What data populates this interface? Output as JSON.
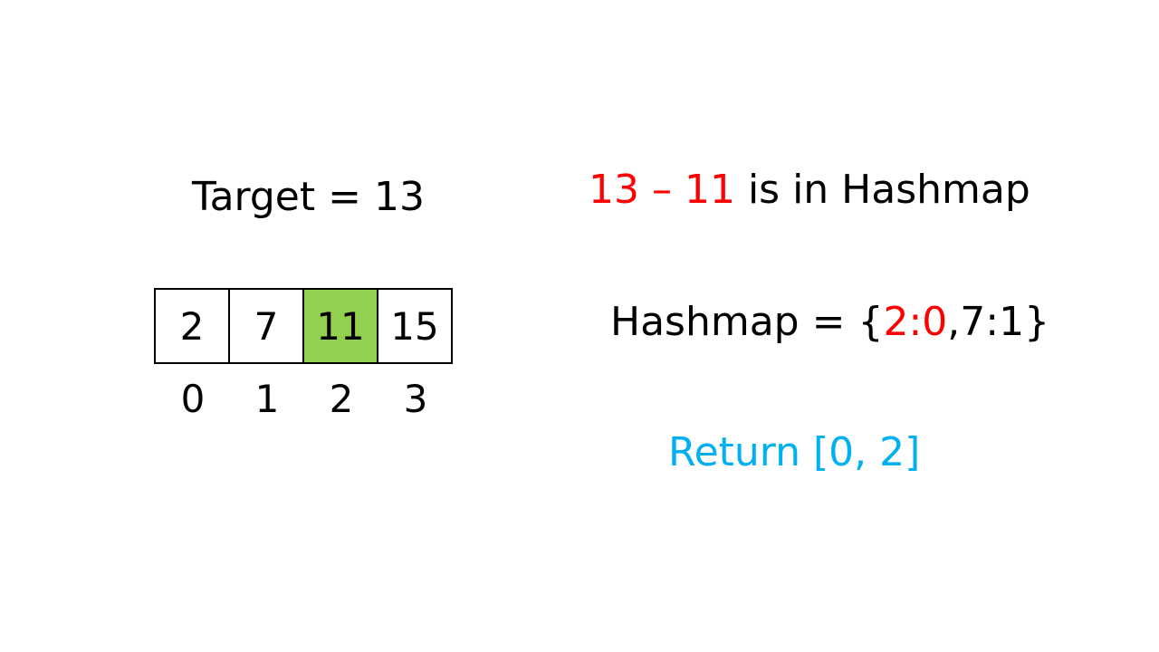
{
  "target": {
    "label": "Target = 13"
  },
  "array": {
    "cells": [
      {
        "value": "2",
        "highlighted": false
      },
      {
        "value": "7",
        "highlighted": false
      },
      {
        "value": "11",
        "highlighted": true
      },
      {
        "value": "15",
        "highlighted": false
      }
    ],
    "indices": [
      "0",
      "1",
      "2",
      "3"
    ],
    "highlight_color": "#92d050"
  },
  "diff": {
    "expression": "13 – 11",
    "suffix": " is in Hashmap"
  },
  "hashmap": {
    "prefix": "Hashmap = {",
    "highlighted_entry": "2:0",
    "rest": ",7:1}"
  },
  "result": {
    "label": "Return [0, 2]"
  },
  "colors": {
    "emphasis_red": "#ff0000",
    "result_blue": "#00b0f0",
    "text": "#000000"
  }
}
